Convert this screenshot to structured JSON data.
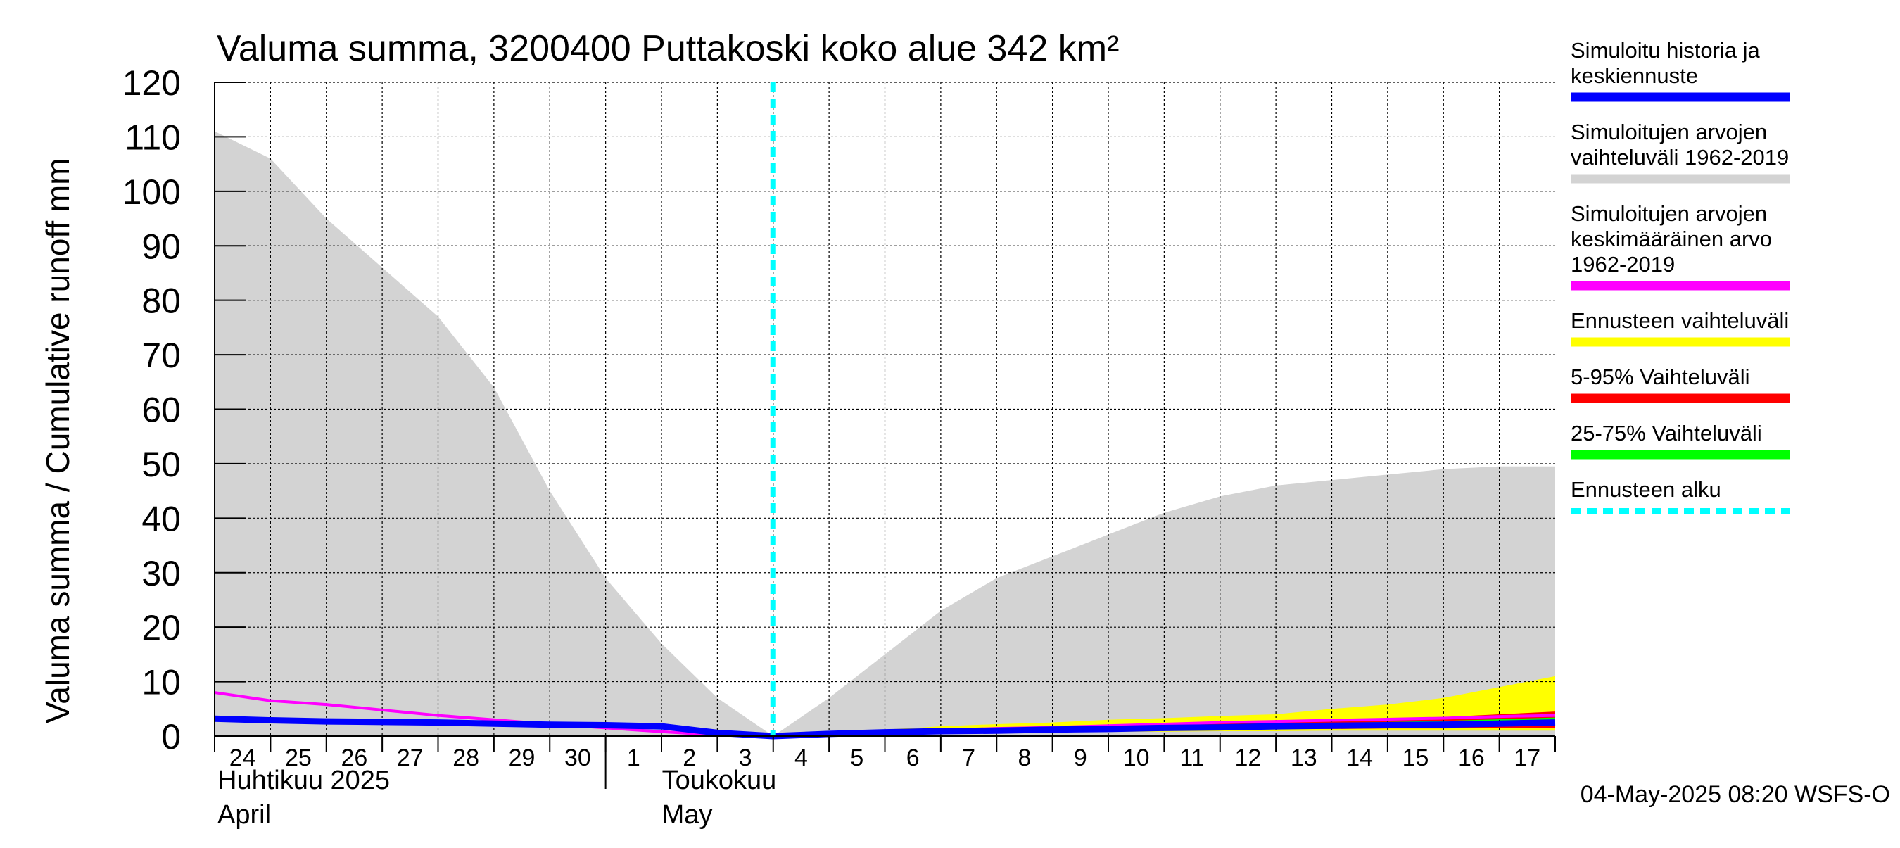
{
  "chart_data": {
    "type": "area",
    "title": "Valuma summa, 3200400 Puttakoski koko alue 342 km²",
    "ylabel": "Valuma summa / Cumulative runoff    mm",
    "ylim": [
      0,
      120
    ],
    "yticks": [
      0,
      10,
      20,
      30,
      40,
      50,
      60,
      70,
      80,
      90,
      100,
      110,
      120
    ],
    "xlim": [
      0,
      24
    ],
    "x_tick_labels": [
      "24",
      "25",
      "26",
      "27",
      "28",
      "29",
      "30",
      "1",
      "2",
      "3",
      "4",
      "5",
      "6",
      "7",
      "8",
      "9",
      "10",
      "11",
      "12",
      "13",
      "14",
      "15",
      "16",
      "17"
    ],
    "month_labels": [
      {
        "line1": "Huhtikuu  2025",
        "line2": "April",
        "start_day_index": 0
      },
      {
        "line1": "Toukokuu",
        "line2": "May",
        "start_day_index": 7
      }
    ],
    "grid": true,
    "legend_position": "right",
    "forecast_start_x": 10,
    "footer": "04-May-2025 08:20 WSFS-O",
    "legend": [
      {
        "label": "Simuloitu historia ja keskiennuste",
        "color": "#0000ff",
        "style": "solid"
      },
      {
        "label": "Simuloitujen arvojen vaihteluväli 1962-2019",
        "color": "#d3d3d3",
        "style": "solid"
      },
      {
        "label": "Simuloitujen arvojen keskimääräinen arvo 1962-2019",
        "color": "#ff00ff",
        "style": "solid"
      },
      {
        "label": "Ennusteen vaihteluväli",
        "color": "#ffff00",
        "style": "solid"
      },
      {
        "label": "5-95% Vaihteluväli",
        "color": "#ff0000",
        "style": "solid"
      },
      {
        "label": "25-75% Vaihteluväli",
        "color": "#00ff00",
        "style": "solid"
      },
      {
        "label": "Ennusteen alku",
        "color": "#00ffff",
        "style": "dashed"
      }
    ],
    "series": [
      {
        "name": "Simuloitujen arvojen vaihteluväli 1962-2019",
        "type": "band",
        "color": "#d3d3d3",
        "x": [
          0,
          1,
          2,
          3,
          4,
          5,
          6,
          7,
          8,
          9,
          10,
          11,
          12,
          13,
          14,
          15,
          16,
          17,
          18,
          19,
          20,
          21,
          22,
          23,
          24
        ],
        "lower": [
          0,
          0,
          0,
          0,
          0,
          0,
          0,
          0,
          0,
          0,
          0,
          0,
          0,
          0,
          0,
          0,
          0,
          0,
          0,
          0,
          0,
          0,
          0,
          0,
          0
        ],
        "upper": [
          111,
          106,
          95,
          86,
          77,
          64,
          45,
          29,
          17,
          7,
          0,
          7,
          15,
          23,
          29,
          33,
          37,
          41,
          44,
          46,
          47,
          48,
          49,
          49.5,
          49.5
        ]
      },
      {
        "name": "Ennusteen vaihteluväli",
        "type": "band",
        "color": "#ffff00",
        "x": [
          10,
          11,
          12,
          13,
          14,
          15,
          16,
          17,
          18,
          19,
          20,
          21,
          22,
          23,
          24
        ],
        "lower": [
          0,
          0.2,
          0.4,
          0.5,
          0.6,
          0.7,
          0.8,
          0.8,
          0.9,
          0.9,
          1.0,
          1.0,
          1.0,
          1.0,
          1.0
        ],
        "upper": [
          0,
          0.6,
          1.2,
          1.8,
          2.2,
          2.5,
          3.0,
          3.3,
          3.7,
          4.0,
          5.0,
          5.8,
          7.0,
          9.0,
          11.0
        ]
      },
      {
        "name": "5-95% Vaihteluväli",
        "type": "band",
        "color": "#ff0000",
        "x": [
          10,
          11,
          12,
          13,
          14,
          15,
          16,
          17,
          18,
          19,
          20,
          21,
          22,
          23,
          24
        ],
        "lower": [
          0,
          0.3,
          0.5,
          0.7,
          0.8,
          0.9,
          1.0,
          1.1,
          1.2,
          1.3,
          1.3,
          1.4,
          1.4,
          1.5,
          1.5
        ],
        "upper": [
          0,
          0.5,
          0.9,
          1.2,
          1.5,
          1.7,
          2.0,
          2.2,
          2.4,
          2.6,
          2.8,
          3.1,
          3.5,
          4.0,
          4.5
        ]
      },
      {
        "name": "25-75% Vaihteluväli",
        "type": "band",
        "color": "#00ff00",
        "x": [
          10,
          11,
          12,
          13,
          14,
          15,
          16,
          17,
          18,
          19,
          20,
          21,
          22,
          23,
          24
        ],
        "lower": [
          0,
          0.35,
          0.6,
          0.8,
          1.0,
          1.1,
          1.2,
          1.4,
          1.5,
          1.6,
          1.7,
          1.8,
          1.9,
          2.0,
          2.1
        ],
        "upper": [
          0,
          0.45,
          0.8,
          1.0,
          1.2,
          1.4,
          1.6,
          1.8,
          2.0,
          2.2,
          2.4,
          2.6,
          2.8,
          3.1,
          3.4
        ]
      },
      {
        "name": "Simuloitujen arvojen keskimääräinen arvo 1962-2019",
        "type": "line",
        "color": "#ff00ff",
        "x": [
          0,
          1,
          2,
          3,
          4,
          5,
          6,
          7,
          8,
          9,
          10,
          11,
          12,
          13,
          14,
          15,
          16,
          17,
          18,
          19,
          20,
          21,
          22,
          23,
          24
        ],
        "y": [
          8,
          6.5,
          5.8,
          4.8,
          3.8,
          3.0,
          2.2,
          1.5,
          0.8,
          0.2,
          0,
          0.4,
          0.8,
          1.1,
          1.4,
          1.6,
          1.9,
          2.2,
          2.5,
          2.7,
          2.9,
          3.1,
          3.3,
          3.6,
          3.8
        ]
      },
      {
        "name": "Simuloitu historia ja keskiennuste",
        "type": "line",
        "color": "#0000ff",
        "x": [
          0,
          1,
          2,
          3,
          4,
          5,
          6,
          7,
          8,
          9,
          10,
          11,
          12,
          13,
          14,
          15,
          16,
          17,
          18,
          19,
          20,
          21,
          22,
          23,
          24
        ],
        "y": [
          3.2,
          2.9,
          2.7,
          2.6,
          2.5,
          2.3,
          2.1,
          2.0,
          1.8,
          0.6,
          0,
          0.4,
          0.7,
          0.9,
          1.0,
          1.2,
          1.3,
          1.5,
          1.6,
          1.8,
          1.9,
          2.0,
          2.1,
          2.3,
          2.5
        ]
      }
    ]
  }
}
